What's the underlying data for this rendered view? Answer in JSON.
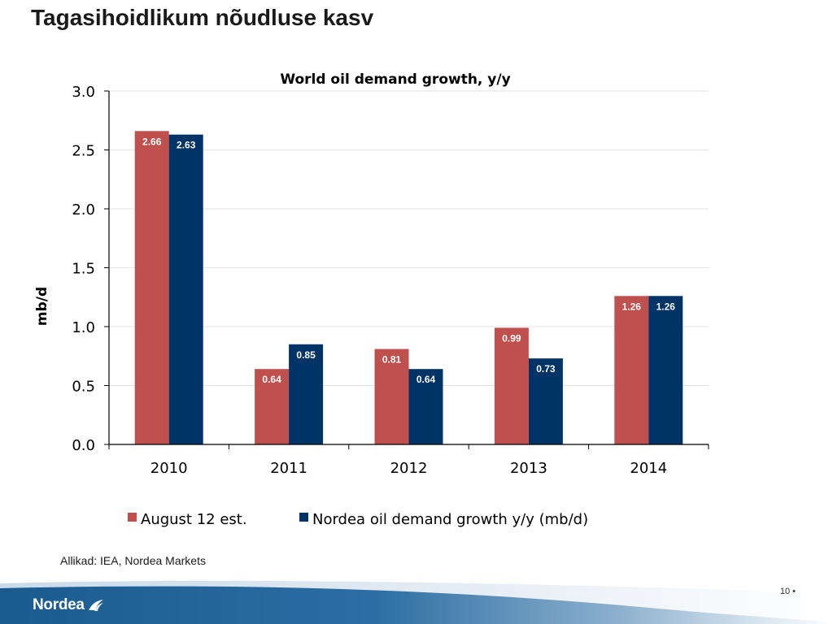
{
  "slide": {
    "title": "Tagasihoidlikum nõudluse kasv",
    "source": "Allikad: IEA, Nordea Markets",
    "page_number": "10",
    "page_bullet": "•",
    "brand": "Nordea"
  },
  "colors": {
    "series_red": "#c0504d",
    "series_navy": "#003366",
    "footer_band": "#1e5c91",
    "footer_light": "#dbe6f0"
  },
  "chart_data": {
    "type": "bar",
    "title": "World oil demand growth, y/y",
    "ylabel": "mb/d",
    "xlabel": "",
    "ylim": [
      0,
      3.0
    ],
    "yticks": [
      "0.0",
      "0.5",
      "1.0",
      "1.5",
      "2.0",
      "2.5",
      "3.0"
    ],
    "grid": true,
    "legend_position": "bottom",
    "categories": [
      "2010",
      "2011",
      "2012",
      "2013",
      "2014"
    ],
    "series": [
      {
        "name": "August 12 est.",
        "values": [
          2.66,
          0.64,
          0.81,
          0.99,
          1.26
        ],
        "labels": [
          "2.66",
          "0.64",
          "0.81",
          "0.99",
          "1.26"
        ]
      },
      {
        "name": "Nordea oil demand growth y/y (mb/d)",
        "values": [
          2.63,
          0.85,
          0.64,
          0.73,
          1.26
        ],
        "labels": [
          "2.63",
          "0.85",
          "0.64",
          "0.73",
          "1.26"
        ]
      }
    ]
  }
}
